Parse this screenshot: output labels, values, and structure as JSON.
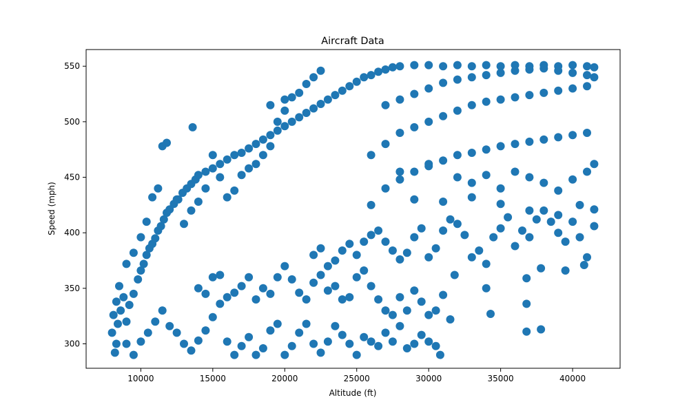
{
  "chart_data": {
    "type": "scatter",
    "title": "Aircraft Data",
    "xlabel": "Altitude (ft)",
    "ylabel": "Speed (mph)",
    "xlim": [
      6200,
      43300
    ],
    "ylim": [
      278,
      565
    ],
    "xticks": [
      10000,
      15000,
      20000,
      25000,
      30000,
      35000,
      40000
    ],
    "yticks": [
      300,
      350,
      400,
      450,
      500,
      550
    ],
    "grid": false,
    "legend": "none",
    "marker_color": "#1f77b4",
    "series": [
      {
        "points": [
          [
            8200,
            292
          ],
          [
            8300,
            300
          ],
          [
            8000,
            310
          ],
          [
            8400,
            318
          ],
          [
            8100,
            326
          ],
          [
            8600,
            330
          ],
          [
            8300,
            338
          ],
          [
            8800,
            342
          ],
          [
            8500,
            352
          ],
          [
            9000,
            320
          ],
          [
            9200,
            335
          ],
          [
            9500,
            345
          ],
          [
            9800,
            358
          ],
          [
            10000,
            366
          ],
          [
            10200,
            372
          ],
          [
            10400,
            380
          ],
          [
            10600,
            386
          ],
          [
            10800,
            390
          ],
          [
            11000,
            395
          ],
          [
            11200,
            402
          ],
          [
            11400,
            406
          ],
          [
            11600,
            412
          ],
          [
            11800,
            418
          ],
          [
            12000,
            421
          ],
          [
            12300,
            426
          ],
          [
            12600,
            430
          ],
          [
            12900,
            436
          ],
          [
            13200,
            440
          ],
          [
            13500,
            444
          ],
          [
            13800,
            448
          ],
          [
            14000,
            452
          ],
          [
            14500,
            455
          ],
          [
            15000,
            458
          ],
          [
            15500,
            462
          ],
          [
            16000,
            466
          ],
          [
            16500,
            470
          ],
          [
            17000,
            472
          ],
          [
            17500,
            476
          ],
          [
            18000,
            480
          ],
          [
            18500,
            484
          ],
          [
            19000,
            488
          ],
          [
            19500,
            492
          ],
          [
            20000,
            496
          ],
          [
            20500,
            500
          ],
          [
            21000,
            504
          ],
          [
            21500,
            508
          ],
          [
            22000,
            512
          ],
          [
            22500,
            516
          ],
          [
            23000,
            520
          ],
          [
            23500,
            524
          ],
          [
            24000,
            528
          ],
          [
            24500,
            532
          ],
          [
            25000,
            536
          ],
          [
            25500,
            540
          ],
          [
            26000,
            542
          ],
          [
            26500,
            545
          ],
          [
            27000,
            547
          ],
          [
            27500,
            549
          ],
          [
            28000,
            550
          ],
          [
            29000,
            551
          ],
          [
            30000,
            551
          ],
          [
            31000,
            550
          ],
          [
            32000,
            551
          ],
          [
            33000,
            550
          ],
          [
            34000,
            551
          ],
          [
            35000,
            550
          ],
          [
            36000,
            551
          ],
          [
            37000,
            550
          ],
          [
            38000,
            551
          ],
          [
            39000,
            550
          ],
          [
            40000,
            551
          ],
          [
            41000,
            550
          ],
          [
            41500,
            549
          ],
          [
            9000,
            372
          ],
          [
            9500,
            382
          ],
          [
            10000,
            396
          ],
          [
            10400,
            410
          ],
          [
            10800,
            432
          ],
          [
            11200,
            440
          ],
          [
            11500,
            478
          ],
          [
            11800,
            481
          ],
          [
            12500,
            430
          ],
          [
            13000,
            408
          ],
          [
            13500,
            420
          ],
          [
            13600,
            495
          ],
          [
            14000,
            428
          ],
          [
            14500,
            440
          ],
          [
            15000,
            470
          ],
          [
            15500,
            450
          ],
          [
            16000,
            432
          ],
          [
            16500,
            438
          ],
          [
            17000,
            452
          ],
          [
            17500,
            458
          ],
          [
            18000,
            462
          ],
          [
            18500,
            470
          ],
          [
            19000,
            478
          ],
          [
            19500,
            500
          ],
          [
            20000,
            510
          ],
          [
            20500,
            522
          ],
          [
            21000,
            526
          ],
          [
            21500,
            534
          ],
          [
            22000,
            540
          ],
          [
            22500,
            546
          ],
          [
            19000,
            515
          ],
          [
            20000,
            520
          ],
          [
            9000,
            300
          ],
          [
            9500,
            290
          ],
          [
            10000,
            302
          ],
          [
            10500,
            310
          ],
          [
            11000,
            320
          ],
          [
            11500,
            330
          ],
          [
            12000,
            316
          ],
          [
            12500,
            310
          ],
          [
            13000,
            300
          ],
          [
            13500,
            294
          ],
          [
            14000,
            303
          ],
          [
            14500,
            312
          ],
          [
            15000,
            324
          ],
          [
            15500,
            336
          ],
          [
            16000,
            302
          ],
          [
            16500,
            290
          ],
          [
            17000,
            298
          ],
          [
            17500,
            306
          ],
          [
            18000,
            290
          ],
          [
            18500,
            296
          ],
          [
            19000,
            312
          ],
          [
            19500,
            318
          ],
          [
            20000,
            290
          ],
          [
            20500,
            298
          ],
          [
            21000,
            310
          ],
          [
            21500,
            318
          ],
          [
            22000,
            300
          ],
          [
            22500,
            292
          ],
          [
            23000,
            302
          ],
          [
            23500,
            316
          ],
          [
            24000,
            308
          ],
          [
            24500,
            300
          ],
          [
            25000,
            290
          ],
          [
            25500,
            306
          ],
          [
            26000,
            302
          ],
          [
            26500,
            298
          ],
          [
            27000,
            310
          ],
          [
            27500,
            302
          ],
          [
            28000,
            316
          ],
          [
            28500,
            296
          ],
          [
            29000,
            300
          ],
          [
            29500,
            308
          ],
          [
            30000,
            302
          ],
          [
            30500,
            298
          ],
          [
            30800,
            290
          ],
          [
            14000,
            350
          ],
          [
            14500,
            345
          ],
          [
            15000,
            360
          ],
          [
            15500,
            362
          ],
          [
            16000,
            342
          ],
          [
            16500,
            346
          ],
          [
            17000,
            352
          ],
          [
            17500,
            360
          ],
          [
            18000,
            340
          ],
          [
            18500,
            350
          ],
          [
            19000,
            345
          ],
          [
            19500,
            360
          ],
          [
            20000,
            370
          ],
          [
            20500,
            358
          ],
          [
            21000,
            346
          ],
          [
            21500,
            340
          ],
          [
            22000,
            355
          ],
          [
            22500,
            362
          ],
          [
            23000,
            348
          ],
          [
            23500,
            352
          ],
          [
            24000,
            340
          ],
          [
            24500,
            342
          ],
          [
            25000,
            360
          ],
          [
            25500,
            366
          ],
          [
            26000,
            352
          ],
          [
            26500,
            340
          ],
          [
            27000,
            330
          ],
          [
            27500,
            326
          ],
          [
            28000,
            342
          ],
          [
            28500,
            330
          ],
          [
            29000,
            348
          ],
          [
            29500,
            338
          ],
          [
            30000,
            326
          ],
          [
            30500,
            330
          ],
          [
            31000,
            344
          ],
          [
            31500,
            322
          ],
          [
            31800,
            362
          ],
          [
            22000,
            380
          ],
          [
            22500,
            386
          ],
          [
            23000,
            370
          ],
          [
            23500,
            375
          ],
          [
            24000,
            384
          ],
          [
            24500,
            390
          ],
          [
            25000,
            380
          ],
          [
            25500,
            392
          ],
          [
            26000,
            398
          ],
          [
            26500,
            402
          ],
          [
            27000,
            392
          ],
          [
            27500,
            384
          ],
          [
            28000,
            376
          ],
          [
            28500,
            382
          ],
          [
            29000,
            396
          ],
          [
            29500,
            404
          ],
          [
            30000,
            378
          ],
          [
            30500,
            386
          ],
          [
            31000,
            402
          ],
          [
            31500,
            412
          ],
          [
            32000,
            408
          ],
          [
            32500,
            398
          ],
          [
            33000,
            378
          ],
          [
            33500,
            384
          ],
          [
            34000,
            372
          ],
          [
            34500,
            396
          ],
          [
            35000,
            404
          ],
          [
            35500,
            414
          ],
          [
            36000,
            388
          ],
          [
            36500,
            402
          ],
          [
            37000,
            396
          ],
          [
            37500,
            412
          ],
          [
            38000,
            420
          ],
          [
            38500,
            410
          ],
          [
            39000,
            400
          ],
          [
            39500,
            392
          ],
          [
            40000,
            410
          ],
          [
            40500,
            396
          ],
          [
            41000,
            378
          ],
          [
            41500,
            406
          ],
          [
            34000,
            350
          ],
          [
            34300,
            327
          ],
          [
            36800,
            336
          ],
          [
            36800,
            311
          ],
          [
            37800,
            313
          ],
          [
            36800,
            359
          ],
          [
            37800,
            368
          ],
          [
            39500,
            366
          ],
          [
            40800,
            371
          ],
          [
            26000,
            425
          ],
          [
            27000,
            440
          ],
          [
            28000,
            448
          ],
          [
            29000,
            455
          ],
          [
            30000,
            462
          ],
          [
            31000,
            465
          ],
          [
            32000,
            470
          ],
          [
            33000,
            472
          ],
          [
            34000,
            475
          ],
          [
            35000,
            478
          ],
          [
            36000,
            480
          ],
          [
            37000,
            482
          ],
          [
            38000,
            484
          ],
          [
            39000,
            486
          ],
          [
            40000,
            488
          ],
          [
            41000,
            490
          ],
          [
            26000,
            470
          ],
          [
            27000,
            480
          ],
          [
            28000,
            490
          ],
          [
            29000,
            495
          ],
          [
            30000,
            500
          ],
          [
            31000,
            505
          ],
          [
            32000,
            510
          ],
          [
            33000,
            515
          ],
          [
            34000,
            518
          ],
          [
            35000,
            520
          ],
          [
            36000,
            522
          ],
          [
            37000,
            524
          ],
          [
            38000,
            526
          ],
          [
            39000,
            528
          ],
          [
            40000,
            530
          ],
          [
            41000,
            532
          ],
          [
            27000,
            515
          ],
          [
            28000,
            520
          ],
          [
            29000,
            525
          ],
          [
            30000,
            530
          ],
          [
            31000,
            535
          ],
          [
            32000,
            538
          ],
          [
            33000,
            540
          ],
          [
            34000,
            542
          ],
          [
            35000,
            544
          ],
          [
            36000,
            546
          ],
          [
            37000,
            547
          ],
          [
            38000,
            548
          ],
          [
            39000,
            546
          ],
          [
            40000,
            544
          ],
          [
            41000,
            542
          ],
          [
            41500,
            540
          ],
          [
            28000,
            455
          ],
          [
            30000,
            460
          ],
          [
            32000,
            450
          ],
          [
            33000,
            445
          ],
          [
            34000,
            452
          ],
          [
            35000,
            440
          ],
          [
            36000,
            455
          ],
          [
            37000,
            450
          ],
          [
            38000,
            445
          ],
          [
            39000,
            438
          ],
          [
            40000,
            448
          ],
          [
            41000,
            455
          ],
          [
            41500,
            462
          ],
          [
            29000,
            430
          ],
          [
            31000,
            428
          ],
          [
            33000,
            432
          ],
          [
            35000,
            426
          ],
          [
            37000,
            420
          ],
          [
            39000,
            416
          ],
          [
            40500,
            425
          ],
          [
            41500,
            421
          ]
        ]
      }
    ]
  }
}
